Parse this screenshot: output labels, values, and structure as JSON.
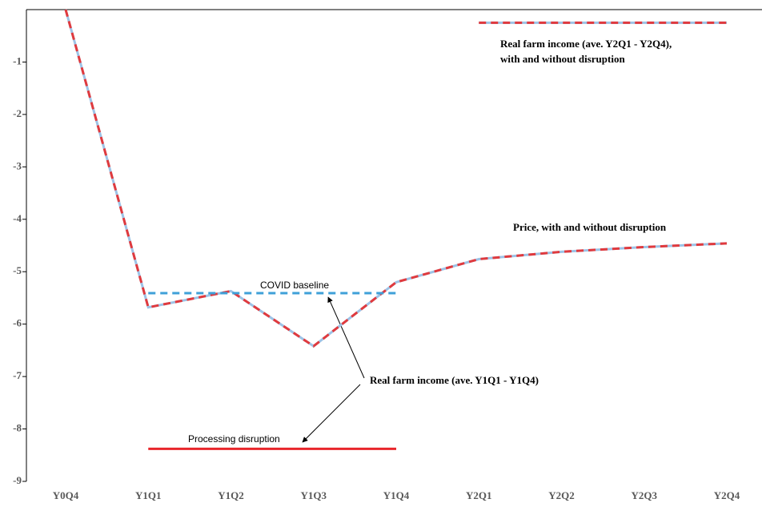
{
  "chart_data": {
    "type": "line",
    "categories": [
      "Y0Q4",
      "Y1Q1",
      "Y1Q2",
      "Y1Q3",
      "Y1Q4",
      "Y2Q1",
      "Y2Q2",
      "Y2Q3",
      "Y2Q4"
    ],
    "ylim": [
      -9,
      0
    ],
    "yticks": [
      -9,
      -8,
      -7,
      -6,
      -5,
      -4,
      -3,
      -2,
      -1
    ],
    "series": [
      {
        "color": "#9dc3e6",
        "dashed": false,
        "values": [
          0,
          -5.68,
          -5.37,
          -6.42,
          -5.2,
          -4.76,
          -4.62,
          -4.53,
          -4.46
        ]
      },
      {
        "color": "#e03a3e",
        "dashed": true,
        "values": [
          0,
          -5.68,
          -5.37,
          -6.42,
          -5.2,
          -4.76,
          -4.62,
          -4.53,
          -4.46
        ]
      },
      {
        "color": "#3fa0d8",
        "dashed": true,
        "values": [
          null,
          -5.41,
          -5.41,
          -5.41,
          -5.41,
          null,
          null,
          null,
          null
        ]
      },
      {
        "color": "#e8262b",
        "dashed": false,
        "values": [
          null,
          -8.38,
          -8.38,
          -8.38,
          -8.38,
          null,
          null,
          null,
          null
        ]
      },
      {
        "color": "#9dc3e6",
        "dashed": false,
        "values": [
          null,
          null,
          null,
          null,
          null,
          -0.25,
          -0.25,
          -0.25,
          -0.25
        ]
      },
      {
        "color": "#e03a3e",
        "dashed": true,
        "values": [
          null,
          null,
          null,
          null,
          null,
          -0.25,
          -0.25,
          -0.25,
          -0.25
        ]
      }
    ],
    "annotations": [
      {
        "lines": [
          "Real farm income (ave. Y2Q1 - Y2Q4),",
          "with and without disruption"
        ]
      },
      {
        "lines": [
          "Price, with and without disruption"
        ]
      },
      {
        "lines": [
          "COVID baseline"
        ]
      },
      {
        "lines": [
          "Real farm income (ave. Y1Q1 - Y1Q4)"
        ]
      },
      {
        "lines": [
          "Processing disruption"
        ]
      }
    ]
  }
}
